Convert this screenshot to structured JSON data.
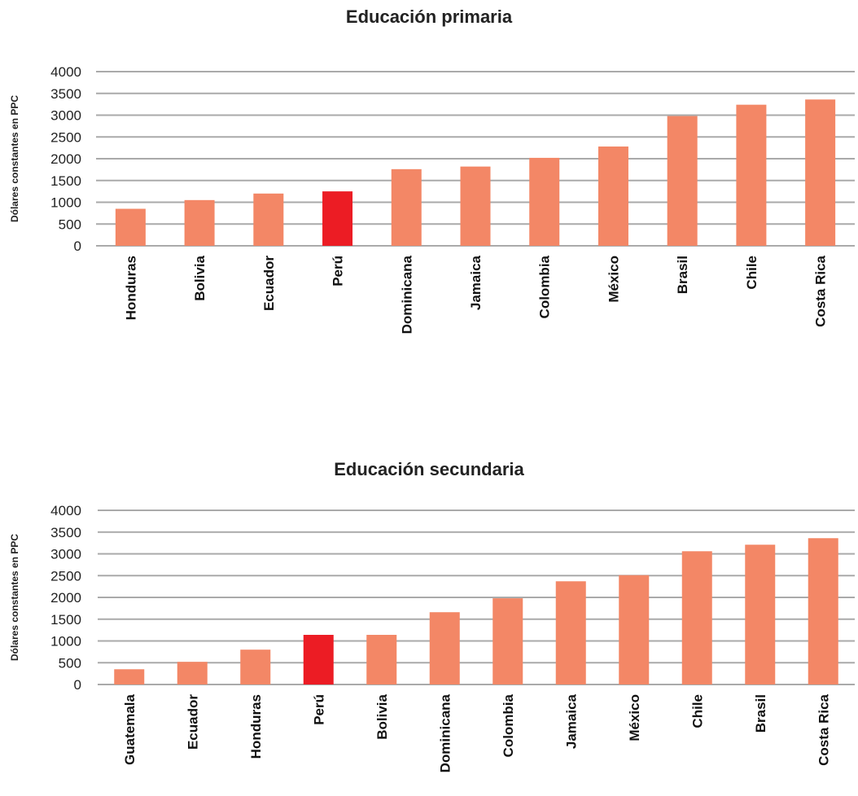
{
  "colors": {
    "bar": "#f38766",
    "highlight": "#ec1c24",
    "grid": "#aaaaaa",
    "text": "#222222"
  },
  "chart_data": [
    {
      "type": "bar",
      "title": "Educación primaria",
      "ylabel": "Dólares constantes en PPC",
      "xlabel": "",
      "ylim": [
        0,
        4000
      ],
      "yticks": [
        0,
        500,
        1000,
        1500,
        2000,
        2500,
        3000,
        3500,
        4000
      ],
      "grid": true,
      "categories": [
        "Honduras",
        "Bolivia",
        "Ecuador",
        "Perú",
        "Dominicana",
        "Jamaica",
        "Colombia",
        "México",
        "Brasil",
        "Chile",
        "Costa Rica"
      ],
      "values": [
        850,
        1050,
        1200,
        1250,
        1760,
        1820,
        2020,
        2280,
        2980,
        3240,
        3360
      ],
      "highlight": "Perú"
    },
    {
      "type": "bar",
      "title": "Educación secundaria",
      "ylabel": "Dólares constantes en PPC",
      "xlabel": "",
      "ylim": [
        0,
        4000
      ],
      "yticks": [
        0,
        500,
        1000,
        1500,
        2000,
        2500,
        3000,
        3500,
        4000
      ],
      "grid": true,
      "categories": [
        "Guatemala",
        "Ecuador",
        "Honduras",
        "Perú",
        "Bolivia",
        "Dominicana",
        "Colombia",
        "Jamaica",
        "México",
        "Chile",
        "Brasil",
        "Costa Rica"
      ],
      "values": [
        350,
        520,
        800,
        1140,
        1140,
        1660,
        1980,
        2370,
        2510,
        3060,
        3210,
        3360
      ],
      "highlight": "Perú"
    }
  ]
}
